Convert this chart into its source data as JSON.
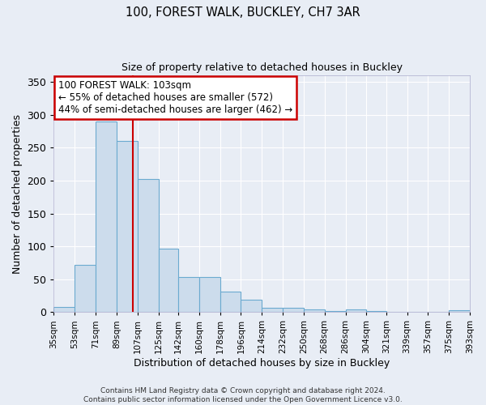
{
  "title1": "100, FOREST WALK, BUCKLEY, CH7 3AR",
  "title2": "Size of property relative to detached houses in Buckley",
  "xlabel": "Distribution of detached houses by size in Buckley",
  "ylabel": "Number of detached properties",
  "bar_color": "#ccdcec",
  "bar_edge_color": "#6baad0",
  "background_color": "#e8edf5",
  "grid_color": "#ffffff",
  "red_line_x": 103,
  "annotation_text": "100 FOREST WALK: 103sqm\n← 55% of detached houses are smaller (572)\n44% of semi-detached houses are larger (462) →",
  "annotation_box_color": "#ffffff",
  "annotation_box_edge": "#cc0000",
  "footnote": "Contains HM Land Registry data © Crown copyright and database right 2024.\nContains public sector information licensed under the Open Government Licence v3.0.",
  "bin_edges": [
    35,
    53,
    71,
    89,
    107,
    125,
    142,
    160,
    178,
    196,
    214,
    232,
    250,
    268,
    286,
    304,
    321,
    339,
    357,
    375,
    393
  ],
  "bin_heights": [
    8,
    72,
    290,
    260,
    203,
    96,
    53,
    53,
    31,
    19,
    7,
    7,
    4,
    1,
    4,
    1,
    0,
    0,
    0,
    3
  ],
  "tick_labels": [
    "35sqm",
    "53sqm",
    "71sqm",
    "89sqm",
    "107sqm",
    "125sqm",
    "142sqm",
    "160sqm",
    "178sqm",
    "196sqm",
    "214sqm",
    "232sqm",
    "250sqm",
    "268sqm",
    "286sqm",
    "304sqm",
    "321sqm",
    "339sqm",
    "357sqm",
    "375sqm",
    "393sqm"
  ],
  "ylim": [
    0,
    360
  ],
  "yticks": [
    0,
    50,
    100,
    150,
    200,
    250,
    300,
    350
  ]
}
